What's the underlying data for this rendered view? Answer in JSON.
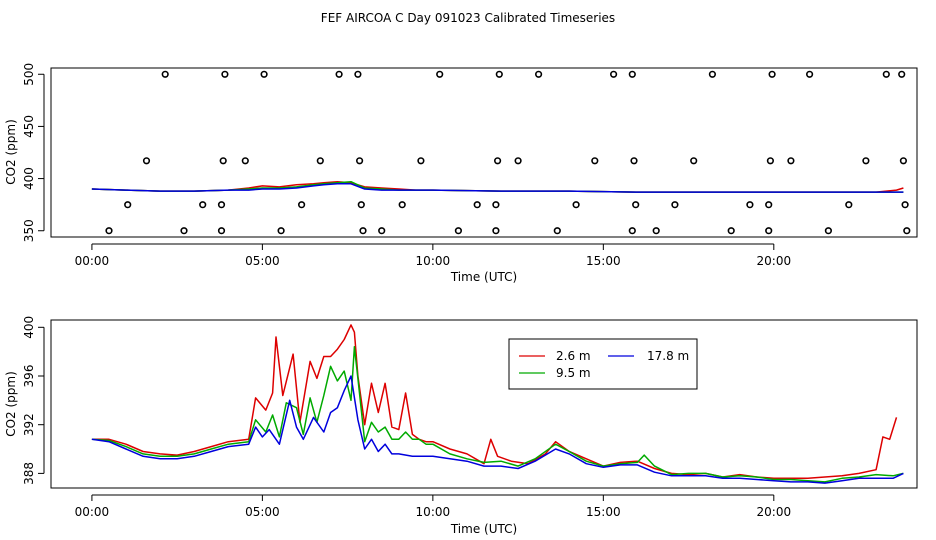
{
  "title": "FEF AIRCOA C  Day 091023  Calibrated Timeseries",
  "colors": {
    "series_a": "#dd0000",
    "series_b": "#00aa00",
    "series_c": "#0000dd",
    "axis": "#000000"
  },
  "chart_data": [
    {
      "type": "line",
      "name": "top-panel",
      "xlabel": "Time (UTC)",
      "ylabel": "CO2 (ppm)",
      "xlim": [
        -1.2,
        24.2
      ],
      "ylim": [
        344,
        506
      ],
      "x_ticks": [
        0,
        5,
        10,
        15,
        20
      ],
      "x_tick_labels": [
        "00:00",
        "05:00",
        "10:00",
        "15:00",
        "20:00"
      ],
      "y_ticks": [
        350,
        400,
        450,
        500
      ],
      "y_tick_labels": [
        "350",
        "400",
        "450",
        "500"
      ],
      "series": [
        {
          "name": "2.6 m",
          "color": "#dd0000",
          "x": [
            0,
            1,
            2,
            3,
            4,
            4.6,
            5,
            5.5,
            6,
            6.5,
            6.8,
            7.2,
            7.6,
            8,
            8.5,
            9,
            9.5,
            10,
            12,
            14,
            16,
            18,
            20,
            22,
            23,
            23.6,
            23.8
          ],
          "values": [
            390,
            389,
            388,
            388,
            389,
            391,
            393,
            392,
            394,
            395,
            396,
            397,
            396,
            392,
            391,
            390,
            389,
            389,
            388,
            388,
            387,
            387,
            387,
            387,
            387,
            389,
            391
          ]
        },
        {
          "name": "9.5 m",
          "color": "#00aa00",
          "x": [
            0,
            1,
            2,
            3,
            4,
            4.6,
            5,
            5.5,
            6,
            6.5,
            6.8,
            7.2,
            7.6,
            8,
            8.5,
            9,
            9.5,
            10,
            12,
            14,
            16,
            18,
            20,
            22,
            23,
            23.6,
            23.8
          ],
          "values": [
            390,
            389,
            388,
            388,
            389,
            390,
            391,
            391,
            392,
            394,
            395,
            396,
            397,
            391,
            390,
            389,
            389,
            389,
            388,
            388,
            387,
            387,
            387,
            387,
            387,
            387,
            387
          ]
        },
        {
          "name": "17.8 m",
          "color": "#0000dd",
          "x": [
            0,
            1,
            2,
            3,
            4,
            4.6,
            5,
            5.5,
            6,
            6.5,
            6.8,
            7.2,
            7.6,
            8,
            8.5,
            9,
            9.5,
            10,
            12,
            14,
            16,
            18,
            20,
            22,
            23,
            23.6,
            23.8
          ],
          "values": [
            390,
            389,
            388,
            388,
            389,
            389,
            390,
            390,
            391,
            393,
            394,
            395,
            395,
            390,
            389,
            389,
            389,
            389,
            388,
            388,
            387,
            387,
            387,
            387,
            387,
            387,
            387
          ]
        }
      ],
      "markers": {
        "type": "scatter",
        "symbol": "open-circle",
        "x": [
          0.5,
          1.05,
          1.6,
          2.15,
          2.7,
          3.25,
          3.8,
          3.8,
          3.85,
          3.9,
          4.5,
          5.05,
          5.55,
          6.15,
          6.7,
          7.25,
          7.8,
          7.85,
          7.9,
          7.95,
          8.5,
          9.1,
          9.65,
          10.2,
          10.75,
          11.3,
          11.85,
          11.85,
          11.9,
          11.95,
          12.5,
          13.1,
          13.65,
          14.2,
          14.75,
          15.3,
          15.85,
          15.9,
          15.95,
          15.85,
          16.55,
          17.1,
          17.65,
          18.2,
          18.75,
          19.3,
          19.85,
          19.85,
          19.9,
          19.95,
          20.5,
          21.05,
          21.6,
          22.2,
          22.7,
          23.3,
          23.75,
          23.8,
          23.85,
          23.9
        ],
        "values": [
          350,
          375,
          417,
          500,
          350,
          375,
          350,
          375,
          417,
          500,
          417,
          500,
          350,
          375,
          417,
          500,
          500,
          417,
          375,
          350,
          350,
          375,
          417,
          500,
          350,
          375,
          350,
          375,
          417,
          500,
          417,
          500,
          350,
          375,
          417,
          500,
          500,
          417,
          375,
          350,
          350,
          375,
          417,
          500,
          350,
          375,
          350,
          375,
          417,
          500,
          417,
          500,
          350,
          375,
          417,
          500,
          500,
          417,
          375,
          350
        ]
      }
    },
    {
      "type": "line",
      "name": "bottom-panel",
      "xlabel": "Time (UTC)",
      "ylabel": "CO2 (ppm)",
      "xlim": [
        -1.2,
        24.2
      ],
      "ylim": [
        386.8,
        400.6
      ],
      "x_ticks": [
        0,
        5,
        10,
        15,
        20
      ],
      "x_tick_labels": [
        "00:00",
        "05:00",
        "10:00",
        "15:00",
        "20:00"
      ],
      "y_ticks": [
        388,
        392,
        396,
        400
      ],
      "y_tick_labels": [
        "388",
        "392",
        "396",
        "400"
      ],
      "legend": {
        "position": "top-center",
        "entries": [
          "2.6 m",
          "9.5 m",
          "17.8 m"
        ]
      },
      "series": [
        {
          "name": "2.6 m",
          "color": "#dd0000",
          "x": [
            0,
            0.5,
            1,
            1.5,
            2,
            2.5,
            3,
            3.5,
            4,
            4.6,
            4.8,
            5.1,
            5.3,
            5.4,
            5.6,
            5.9,
            6.1,
            6.4,
            6.6,
            6.8,
            7.0,
            7.2,
            7.4,
            7.6,
            7.7,
            7.8,
            8.0,
            8.2,
            8.4,
            8.6,
            8.8,
            9.0,
            9.2,
            9.4,
            9.6,
            9.8,
            10,
            10.5,
            11,
            11.5,
            11.7,
            11.9,
            12.3,
            12.8,
            13.3,
            13.6,
            14,
            14.5,
            15,
            15.5,
            16,
            16.5,
            17,
            17.5,
            18,
            18.5,
            19,
            19.5,
            20,
            20.5,
            21,
            21.5,
            22,
            22.5,
            23,
            23.2,
            23.4,
            23.6
          ],
          "values": [
            390.8,
            390.8,
            390.4,
            389.8,
            389.6,
            389.5,
            389.8,
            390.2,
            390.6,
            390.8,
            394.2,
            393.2,
            394.6,
            399.2,
            394.4,
            397.8,
            392.2,
            397.2,
            395.8,
            397.6,
            397.6,
            398.2,
            399.0,
            400.2,
            399.6,
            396.0,
            392.0,
            395.4,
            393.0,
            395.4,
            391.8,
            391.6,
            394.6,
            391.2,
            390.8,
            390.6,
            390.6,
            390.0,
            389.6,
            388.8,
            390.8,
            389.4,
            389.0,
            388.8,
            389.6,
            390.6,
            389.8,
            389.2,
            388.6,
            388.9,
            389.0,
            388.4,
            388.0,
            387.9,
            388.0,
            387.7,
            387.9,
            387.7,
            387.6,
            387.6,
            387.6,
            387.7,
            387.8,
            388.0,
            388.3,
            391.0,
            390.8,
            392.6
          ]
        },
        {
          "name": "9.5 m",
          "color": "#00aa00",
          "x": [
            0,
            0.5,
            1,
            1.5,
            2,
            2.5,
            3,
            3.5,
            4,
            4.6,
            4.8,
            5.1,
            5.3,
            5.5,
            5.7,
            6.0,
            6.2,
            6.4,
            6.6,
            6.8,
            7.0,
            7.2,
            7.4,
            7.6,
            7.7,
            7.8,
            8.0,
            8.2,
            8.4,
            8.6,
            8.8,
            9.0,
            9.2,
            9.4,
            9.6,
            9.8,
            10,
            10.5,
            11,
            11.5,
            12,
            12.5,
            13,
            13.6,
            14,
            14.5,
            15,
            15.5,
            16,
            16.2,
            16.5,
            17,
            17.5,
            18,
            18.5,
            19,
            19.5,
            20,
            20.5,
            21,
            21.5,
            22,
            22.5,
            23,
            23.5,
            23.8
          ],
          "values": [
            390.8,
            390.7,
            390.2,
            389.6,
            389.4,
            389.4,
            389.6,
            390.0,
            390.4,
            390.6,
            392.4,
            391.4,
            392.8,
            391.0,
            393.8,
            393.4,
            391.2,
            394.2,
            392.2,
            394.4,
            396.8,
            395.6,
            396.4,
            394.0,
            398.4,
            395.8,
            390.6,
            392.2,
            391.4,
            391.8,
            390.8,
            390.8,
            391.4,
            390.8,
            390.8,
            390.4,
            390.4,
            389.6,
            389.2,
            388.9,
            389.0,
            388.6,
            389.2,
            390.4,
            389.8,
            389.0,
            388.6,
            388.8,
            388.9,
            389.5,
            388.6,
            387.9,
            388.0,
            388.0,
            387.7,
            387.8,
            387.7,
            387.5,
            387.5,
            387.4,
            387.3,
            387.6,
            387.7,
            387.9,
            387.8,
            388.0
          ]
        },
        {
          "name": "17.8 m",
          "color": "#0000dd",
          "x": [
            0,
            0.5,
            1,
            1.5,
            2,
            2.5,
            3,
            3.5,
            4,
            4.6,
            4.8,
            5.0,
            5.2,
            5.5,
            5.8,
            6.0,
            6.2,
            6.5,
            6.8,
            7.0,
            7.2,
            7.4,
            7.6,
            7.8,
            8.0,
            8.2,
            8.4,
            8.6,
            8.8,
            9.0,
            9.4,
            9.8,
            10,
            10.5,
            11,
            11.5,
            12,
            12.5,
            13,
            13.6,
            14,
            14.5,
            15,
            15.5,
            16,
            16.5,
            17,
            17.5,
            18,
            18.5,
            19,
            19.5,
            20,
            20.5,
            21,
            21.5,
            22,
            22.5,
            23,
            23.5,
            23.8
          ],
          "values": [
            390.8,
            390.6,
            390.0,
            389.4,
            389.2,
            389.2,
            389.4,
            389.8,
            390.2,
            390.4,
            391.8,
            391.0,
            391.6,
            390.4,
            394.0,
            391.8,
            390.8,
            392.6,
            391.4,
            393.0,
            393.4,
            394.8,
            396.0,
            392.4,
            390.0,
            390.8,
            389.8,
            390.4,
            389.6,
            389.6,
            389.4,
            389.4,
            389.4,
            389.2,
            389.0,
            388.6,
            388.6,
            388.4,
            389.0,
            390.0,
            389.6,
            388.8,
            388.5,
            388.7,
            388.7,
            388.1,
            387.8,
            387.8,
            387.8,
            387.6,
            387.6,
            387.5,
            387.4,
            387.3,
            387.3,
            387.2,
            387.4,
            387.6,
            387.6,
            387.6,
            388.0
          ]
        }
      ]
    }
  ]
}
